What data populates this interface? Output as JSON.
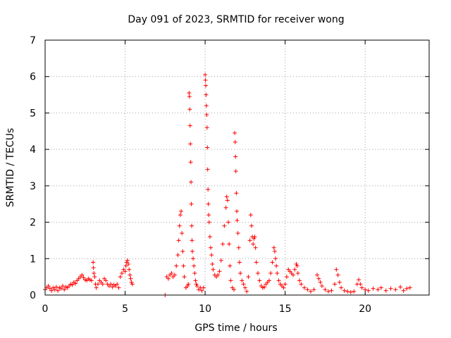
{
  "chart_data": {
    "type": "scatter",
    "title": "Day 091 of 2023, SRMTID for receiver wong",
    "xlabel": "GPS time / hours",
    "ylabel": "SRMTID / TECUs",
    "xlim": [
      0,
      24
    ],
    "ylim": [
      0,
      7
    ],
    "xticks": [
      0,
      5,
      10,
      15,
      20
    ],
    "yticks": [
      0,
      1,
      2,
      3,
      4,
      5,
      6,
      7
    ],
    "grid": true,
    "marker": "+",
    "series": [
      {
        "name": "SRMTID",
        "color": "#ff0000",
        "points": [
          [
            0.0,
            0.15
          ],
          [
            0.1,
            0.2
          ],
          [
            0.2,
            0.25
          ],
          [
            0.3,
            0.18
          ],
          [
            0.4,
            0.12
          ],
          [
            0.5,
            0.2
          ],
          [
            0.6,
            0.15
          ],
          [
            0.7,
            0.22
          ],
          [
            0.8,
            0.12
          ],
          [
            0.9,
            0.2
          ],
          [
            1.0,
            0.18
          ],
          [
            1.1,
            0.25
          ],
          [
            1.2,
            0.15
          ],
          [
            1.3,
            0.22
          ],
          [
            1.4,
            0.2
          ],
          [
            1.5,
            0.25
          ],
          [
            1.6,
            0.3
          ],
          [
            1.7,
            0.28
          ],
          [
            1.8,
            0.35
          ],
          [
            1.9,
            0.32
          ],
          [
            2.0,
            0.4
          ],
          [
            2.1,
            0.45
          ],
          [
            2.2,
            0.5
          ],
          [
            2.3,
            0.55
          ],
          [
            2.4,
            0.48
          ],
          [
            2.5,
            0.42
          ],
          [
            2.6,
            0.4
          ],
          [
            2.7,
            0.45
          ],
          [
            2.8,
            0.42
          ],
          [
            2.9,
            0.4
          ],
          [
            3.0,
            0.9
          ],
          [
            3.02,
            0.75
          ],
          [
            3.05,
            0.6
          ],
          [
            3.1,
            0.5
          ],
          [
            3.15,
            0.3
          ],
          [
            3.2,
            0.2
          ],
          [
            3.3,
            0.3
          ],
          [
            3.4,
            0.4
          ],
          [
            3.5,
            0.35
          ],
          [
            3.6,
            0.3
          ],
          [
            3.7,
            0.45
          ],
          [
            3.8,
            0.4
          ],
          [
            3.9,
            0.3
          ],
          [
            4.0,
            0.25
          ],
          [
            4.1,
            0.3
          ],
          [
            4.2,
            0.22
          ],
          [
            4.3,
            0.28
          ],
          [
            4.4,
            0.25
          ],
          [
            4.5,
            0.3
          ],
          [
            4.6,
            0.2
          ],
          [
            4.7,
            0.5
          ],
          [
            4.8,
            0.6
          ],
          [
            4.9,
            0.7
          ],
          [
            5.0,
            0.65
          ],
          [
            5.05,
            0.8
          ],
          [
            5.1,
            0.9
          ],
          [
            5.15,
            0.95
          ],
          [
            5.2,
            0.85
          ],
          [
            5.25,
            0.7
          ],
          [
            5.3,
            0.55
          ],
          [
            5.35,
            0.45
          ],
          [
            5.4,
            0.35
          ],
          [
            5.45,
            0.3
          ],
          [
            7.5,
            0.0
          ],
          [
            7.6,
            0.5
          ],
          [
            7.7,
            0.45
          ],
          [
            7.8,
            0.55
          ],
          [
            7.9,
            0.6
          ],
          [
            8.0,
            0.5
          ],
          [
            8.1,
            0.55
          ],
          [
            8.2,
            0.8
          ],
          [
            8.3,
            1.1
          ],
          [
            8.35,
            1.5
          ],
          [
            8.4,
            1.9
          ],
          [
            8.45,
            2.2
          ],
          [
            8.5,
            2.3
          ],
          [
            8.55,
            1.7
          ],
          [
            8.6,
            1.2
          ],
          [
            8.65,
            0.8
          ],
          [
            8.7,
            0.5
          ],
          [
            8.8,
            0.2
          ],
          [
            8.9,
            0.25
          ],
          [
            8.95,
            0.3
          ],
          [
            9.0,
            5.55
          ],
          [
            9.02,
            5.45
          ],
          [
            9.04,
            5.1
          ],
          [
            9.06,
            4.65
          ],
          [
            9.08,
            4.15
          ],
          [
            9.1,
            3.65
          ],
          [
            9.12,
            3.1
          ],
          [
            9.14,
            2.5
          ],
          [
            9.16,
            1.9
          ],
          [
            9.18,
            1.5
          ],
          [
            9.2,
            1.2
          ],
          [
            9.25,
            1.0
          ],
          [
            9.3,
            0.8
          ],
          [
            9.35,
            0.6
          ],
          [
            9.4,
            0.4
          ],
          [
            9.45,
            0.3
          ],
          [
            9.5,
            0.25
          ],
          [
            9.6,
            0.15
          ],
          [
            9.7,
            0.2
          ],
          [
            9.8,
            0.12
          ],
          [
            9.9,
            0.2
          ],
          [
            10.0,
            6.05
          ],
          [
            10.02,
            5.9
          ],
          [
            10.04,
            5.75
          ],
          [
            10.06,
            5.5
          ],
          [
            10.08,
            5.2
          ],
          [
            10.1,
            4.95
          ],
          [
            10.12,
            4.6
          ],
          [
            10.14,
            4.05
          ],
          [
            10.16,
            3.45
          ],
          [
            10.18,
            2.9
          ],
          [
            10.2,
            2.5
          ],
          [
            10.22,
            2.2
          ],
          [
            10.25,
            2.0
          ],
          [
            10.3,
            1.6
          ],
          [
            10.35,
            1.3
          ],
          [
            10.4,
            1.1
          ],
          [
            10.45,
            0.85
          ],
          [
            10.5,
            0.7
          ],
          [
            10.6,
            0.55
          ],
          [
            10.7,
            0.5
          ],
          [
            10.8,
            0.55
          ],
          [
            10.9,
            0.65
          ],
          [
            11.0,
            0.95
          ],
          [
            11.1,
            1.4
          ],
          [
            11.2,
            1.9
          ],
          [
            11.3,
            2.4
          ],
          [
            11.35,
            2.7
          ],
          [
            11.4,
            2.6
          ],
          [
            11.45,
            2.0
          ],
          [
            11.5,
            1.4
          ],
          [
            11.55,
            0.8
          ],
          [
            11.6,
            0.4
          ],
          [
            11.7,
            0.2
          ],
          [
            11.8,
            0.15
          ],
          [
            11.85,
            4.45
          ],
          [
            11.88,
            4.2
          ],
          [
            11.9,
            3.8
          ],
          [
            11.92,
            3.4
          ],
          [
            11.95,
            2.8
          ],
          [
            11.98,
            2.3
          ],
          [
            12.0,
            2.05
          ],
          [
            12.05,
            1.7
          ],
          [
            12.1,
            1.3
          ],
          [
            12.15,
            0.9
          ],
          [
            12.2,
            0.6
          ],
          [
            12.3,
            0.4
          ],
          [
            12.4,
            0.3
          ],
          [
            12.5,
            0.2
          ],
          [
            12.6,
            0.1
          ],
          [
            12.7,
            0.5
          ],
          [
            12.8,
            1.5
          ],
          [
            12.85,
            2.2
          ],
          [
            12.9,
            1.9
          ],
          [
            12.95,
            1.6
          ],
          [
            13.0,
            1.4
          ],
          [
            13.05,
            1.55
          ],
          [
            13.1,
            1.6
          ],
          [
            13.15,
            1.3
          ],
          [
            13.2,
            0.9
          ],
          [
            13.3,
            0.6
          ],
          [
            13.4,
            0.4
          ],
          [
            13.5,
            0.25
          ],
          [
            13.6,
            0.2
          ],
          [
            13.7,
            0.22
          ],
          [
            13.8,
            0.3
          ],
          [
            13.9,
            0.35
          ],
          [
            14.0,
            0.4
          ],
          [
            14.1,
            0.6
          ],
          [
            14.2,
            0.9
          ],
          [
            14.3,
            1.3
          ],
          [
            14.35,
            1.2
          ],
          [
            14.4,
            1.0
          ],
          [
            14.45,
            0.8
          ],
          [
            14.5,
            0.6
          ],
          [
            14.6,
            0.4
          ],
          [
            14.7,
            0.3
          ],
          [
            14.8,
            0.25
          ],
          [
            14.9,
            0.2
          ],
          [
            15.0,
            0.3
          ],
          [
            15.1,
            0.5
          ],
          [
            15.2,
            0.7
          ],
          [
            15.3,
            0.65
          ],
          [
            15.4,
            0.6
          ],
          [
            15.5,
            0.55
          ],
          [
            15.6,
            0.7
          ],
          [
            15.7,
            0.85
          ],
          [
            15.75,
            0.8
          ],
          [
            15.8,
            0.6
          ],
          [
            15.9,
            0.4
          ],
          [
            16.0,
            0.3
          ],
          [
            16.2,
            0.2
          ],
          [
            16.4,
            0.15
          ],
          [
            16.6,
            0.1
          ],
          [
            16.8,
            0.15
          ],
          [
            17.0,
            0.55
          ],
          [
            17.1,
            0.45
          ],
          [
            17.2,
            0.35
          ],
          [
            17.3,
            0.25
          ],
          [
            17.5,
            0.15
          ],
          [
            17.7,
            0.1
          ],
          [
            17.9,
            0.12
          ],
          [
            18.1,
            0.3
          ],
          [
            18.2,
            0.7
          ],
          [
            18.3,
            0.55
          ],
          [
            18.4,
            0.35
          ],
          [
            18.5,
            0.2
          ],
          [
            18.7,
            0.12
          ],
          [
            18.9,
            0.1
          ],
          [
            19.1,
            0.08
          ],
          [
            19.3,
            0.1
          ],
          [
            19.5,
            0.3
          ],
          [
            19.6,
            0.42
          ],
          [
            19.7,
            0.3
          ],
          [
            19.8,
            0.2
          ],
          [
            20.0,
            0.15
          ],
          [
            20.2,
            0.12
          ],
          [
            20.5,
            0.18
          ],
          [
            20.8,
            0.15
          ],
          [
            21.0,
            0.2
          ],
          [
            21.3,
            0.12
          ],
          [
            21.6,
            0.18
          ],
          [
            21.9,
            0.15
          ],
          [
            22.2,
            0.22
          ],
          [
            22.4,
            0.12
          ],
          [
            22.6,
            0.18
          ],
          [
            22.8,
            0.2
          ]
        ]
      }
    ]
  }
}
